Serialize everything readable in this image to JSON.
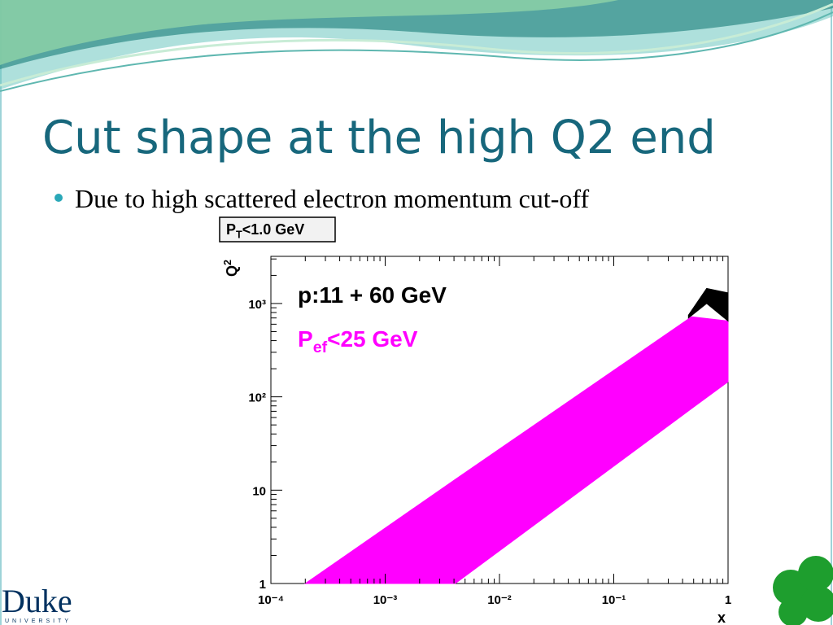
{
  "slide": {
    "title": "Cut shape at the high Q2 end",
    "bullets": [
      "Due to high scattered electron momentum cut-off"
    ],
    "logo": {
      "name": "Duke",
      "sub": "UNIVERSITY"
    }
  },
  "chart_data": {
    "type": "band",
    "box_label": {
      "base": "P",
      "sub": "T",
      "rest": "<1.0 GeV"
    },
    "annotation": "p:11 + 60 GeV",
    "x_label": "x",
    "y_label": {
      "base": "Q",
      "sup": "2"
    },
    "xlog": true,
    "ylog": true,
    "xlim": [
      0.0001,
      1
    ],
    "ylim": [
      1,
      3200
    ],
    "xticks": [
      {
        "value": 0.0001,
        "label": "10⁻⁴"
      },
      {
        "value": 0.001,
        "label": "10⁻³"
      },
      {
        "value": 0.01,
        "label": "10⁻²"
      },
      {
        "value": 0.1,
        "label": "10⁻¹"
      },
      1
    ],
    "yticks": [
      1,
      10,
      {
        "value": 100,
        "label": "10²"
      },
      {
        "value": 1000,
        "label": "10³"
      }
    ],
    "series": [
      {
        "name": {
          "base": "P",
          "sub": "ef",
          "rest": "<25 GeV"
        },
        "color": "#ff00ff",
        "x": [
          0.0002,
          0.0041,
          0.48,
          1
        ],
        "upper": [
          1,
          13,
          720,
          650
        ],
        "lower": [
          1,
          1,
          75,
          145
        ]
      },
      {
        "color": "#000000",
        "x": [
          0.45,
          0.65,
          1
        ],
        "upper": [
          750,
          1450,
          1300
        ],
        "lower": [
          700,
          1000,
          650
        ]
      }
    ]
  }
}
